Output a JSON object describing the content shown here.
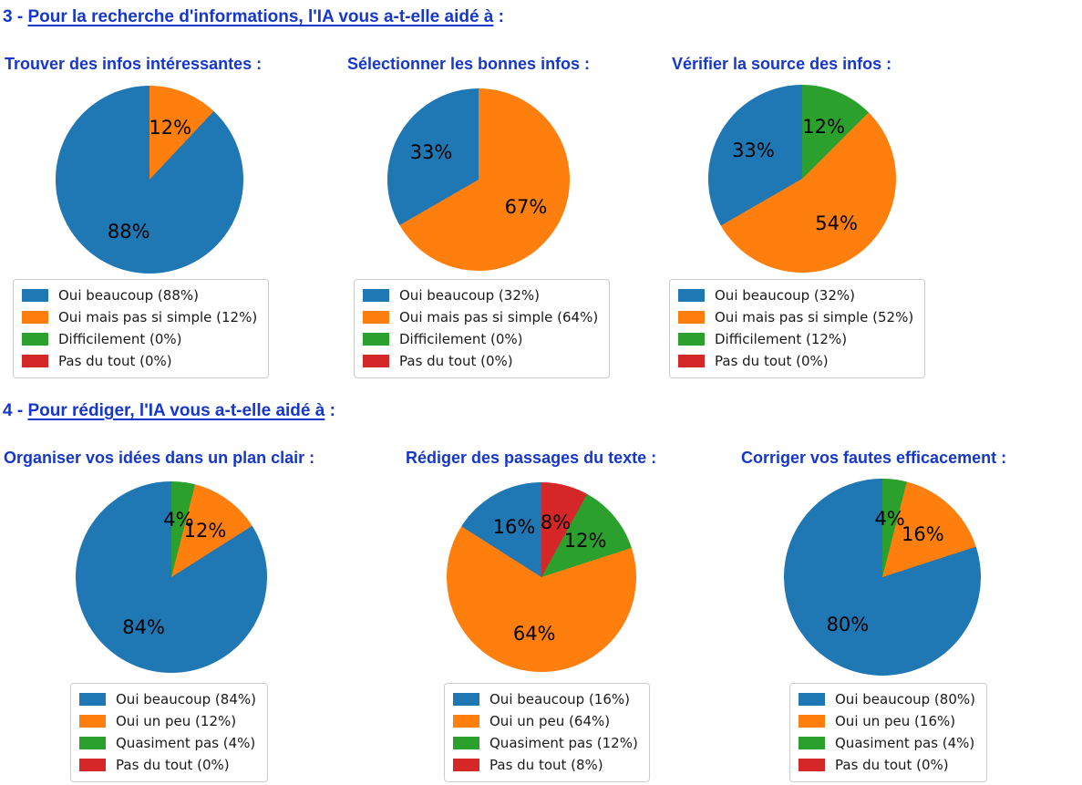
{
  "colors": {
    "blue": "#1f77b4",
    "orange": "#ff7f0e",
    "green": "#2ca02c",
    "red": "#d62728",
    "heading_blue": "#1637cb",
    "slice_label": "#000000",
    "legend_border": "#cccccc"
  },
  "sections": [
    {
      "title_prefix": "3 - ",
      "title_underlined": "Pour la recherche d'informations, l'IA vous a-t-elle aidé à",
      "title_suffix": " :"
    },
    {
      "title_prefix": "4 - ",
      "title_underlined": "Pour rédiger, l'IA vous a-t-elle aidé à",
      "title_suffix": " :"
    }
  ],
  "chart_data": [
    {
      "type": "pie",
      "section": "3 - Pour la recherche d'informations, l'IA vous a-t-elle aidé à :",
      "title": "Trouver des infos intéressantes :",
      "categories": [
        "Oui beaucoup",
        "Oui mais pas si simple",
        "Difficilement",
        "Pas du tout"
      ],
      "values": [
        88,
        12,
        0,
        0
      ],
      "slice_labels": [
        "88%",
        "12%",
        null,
        null
      ],
      "legend_labels": [
        "Oui beaucoup (88%)",
        "Oui mais pas si simple (12%)",
        "Difficilement (0%)",
        "Pas du tout (0%)"
      ],
      "colors": [
        "#1f77b4",
        "#ff7f0e",
        "#2ca02c",
        "#d62728"
      ],
      "start_angle_deg": 90,
      "counterclockwise": true,
      "legend_position": "below"
    },
    {
      "type": "pie",
      "section": "3 - Pour la recherche d'informations, l'IA vous a-t-elle aidé à :",
      "title": "Sélectionner les bonnes infos :",
      "categories": [
        "Oui beaucoup",
        "Oui mais pas si simple",
        "Difficilement",
        "Pas du tout"
      ],
      "values": [
        32,
        64,
        0,
        0
      ],
      "slice_labels": [
        "33%",
        "67%",
        null,
        null
      ],
      "legend_labels": [
        "Oui beaucoup (32%)",
        "Oui mais pas si simple (64%)",
        "Difficilement (0%)",
        "Pas du tout (0%)"
      ],
      "colors": [
        "#1f77b4",
        "#ff7f0e",
        "#2ca02c",
        "#d62728"
      ],
      "start_angle_deg": 90,
      "counterclockwise": true,
      "legend_position": "below"
    },
    {
      "type": "pie",
      "section": "3 - Pour la recherche d'informations, l'IA vous a-t-elle aidé à :",
      "title": "Vérifier la source des infos :",
      "categories": [
        "Oui beaucoup",
        "Oui mais pas si simple",
        "Difficilement",
        "Pas du tout"
      ],
      "values": [
        32,
        52,
        12,
        0
      ],
      "slice_labels": [
        "33%",
        "54%",
        "12%",
        null
      ],
      "legend_labels": [
        "Oui beaucoup (32%)",
        "Oui mais pas si simple (52%)",
        "Difficilement (12%)",
        "Pas du tout (0%)"
      ],
      "colors": [
        "#1f77b4",
        "#ff7f0e",
        "#2ca02c",
        "#d62728"
      ],
      "start_angle_deg": 90,
      "counterclockwise": true,
      "legend_position": "below"
    },
    {
      "type": "pie",
      "section": "4 - Pour rédiger, l'IA vous a-t-elle aidé à :",
      "title": "Organiser vos idées dans un plan clair :",
      "categories": [
        "Oui beaucoup",
        "Oui un peu",
        "Quasiment pas",
        "Pas du tout"
      ],
      "values": [
        84,
        12,
        4,
        0
      ],
      "slice_labels": [
        "84%",
        "12%",
        "4%",
        null
      ],
      "legend_labels": [
        "Oui beaucoup (84%)",
        "Oui un peu (12%)",
        "Quasiment pas (4%)",
        "Pas du tout (0%)"
      ],
      "colors": [
        "#1f77b4",
        "#ff7f0e",
        "#2ca02c",
        "#d62728"
      ],
      "start_angle_deg": 90,
      "counterclockwise": true,
      "legend_position": "below"
    },
    {
      "type": "pie",
      "section": "4 - Pour rédiger, l'IA vous a-t-elle aidé à :",
      "title": "Rédiger des passages du texte :",
      "categories": [
        "Oui beaucoup",
        "Oui un peu",
        "Quasiment pas",
        "Pas du tout"
      ],
      "values": [
        16,
        64,
        12,
        8
      ],
      "slice_labels": [
        "16%",
        "64%",
        "12%",
        "8%"
      ],
      "legend_labels": [
        "Oui beaucoup (16%)",
        "Oui un peu (64%)",
        "Quasiment pas (12%)",
        "Pas du tout (8%)"
      ],
      "colors": [
        "#1f77b4",
        "#ff7f0e",
        "#2ca02c",
        "#d62728"
      ],
      "start_angle_deg": 90,
      "counterclockwise": true,
      "legend_position": "below"
    },
    {
      "type": "pie",
      "section": "4 - Pour rédiger, l'IA vous a-t-elle aidé à :",
      "title": "Corriger vos fautes efficacement :",
      "categories": [
        "Oui beaucoup",
        "Oui un peu",
        "Quasiment pas",
        "Pas du tout"
      ],
      "values": [
        80,
        16,
        4,
        0
      ],
      "slice_labels": [
        "80%",
        "16%",
        "4%",
        null
      ],
      "legend_labels": [
        "Oui beaucoup (80%)",
        "Oui un peu (16%)",
        "Quasiment pas (4%)",
        "Pas du tout (0%)"
      ],
      "colors": [
        "#1f77b4",
        "#ff7f0e",
        "#2ca02c",
        "#d62728"
      ],
      "start_angle_deg": 90,
      "counterclockwise": true,
      "legend_position": "below"
    }
  ]
}
